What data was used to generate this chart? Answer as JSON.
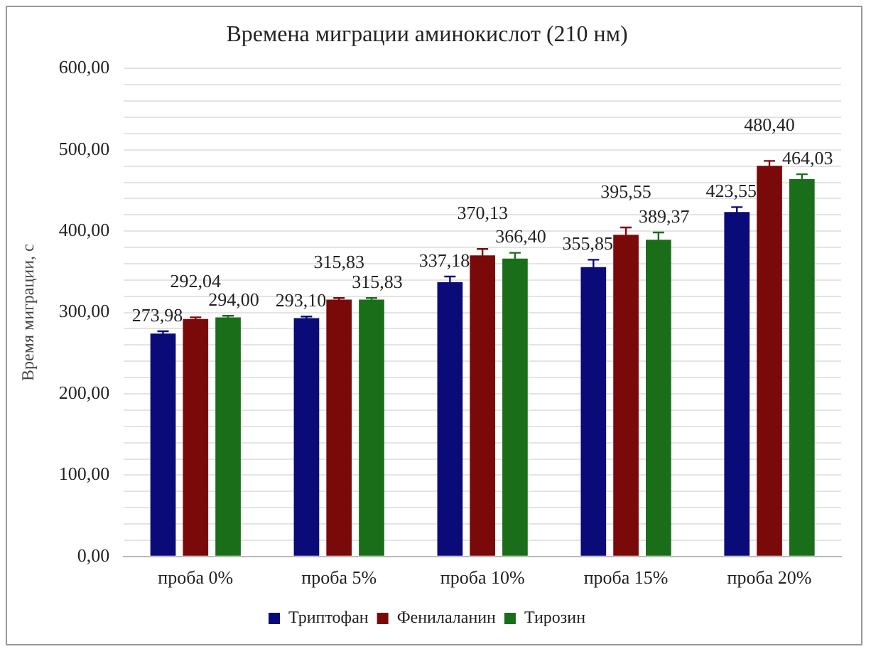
{
  "chart_data": {
    "type": "bar",
    "title": "Времена миграции аминокислот (210 нм)",
    "ylabel": "Время миграции, с",
    "categories": [
      "проба 0%",
      "проба 5%",
      "проба 10%",
      "проба 15%",
      "проба 20%"
    ],
    "series": [
      {
        "name": "Триптофан",
        "color": "#0a0a78",
        "values": [
          273.98,
          293.1,
          337.18,
          355.85,
          423.55
        ],
        "errors": [
          3,
          2,
          7,
          9,
          6
        ],
        "value_labels": [
          "273,98",
          "293,10",
          "337,18",
          "355,85",
          "423,55"
        ]
      },
      {
        "name": "Фенилаланин",
        "color": "#7a0a0a",
        "values": [
          292.04,
          315.83,
          370.13,
          395.55,
          480.4
        ],
        "errors": [
          2,
          2,
          8,
          9,
          6
        ],
        "value_labels": [
          "292,04",
          "315,83",
          "370,13",
          "395,55",
          "480,40"
        ]
      },
      {
        "name": "Тирозин",
        "color": "#1a6e1a",
        "values": [
          294.0,
          315.83,
          366.4,
          389.37,
          464.03
        ],
        "errors": [
          2,
          2,
          7,
          9,
          6
        ],
        "value_labels": [
          "294,00",
          "315,83",
          "366,40",
          "389,37",
          "464,03"
        ]
      }
    ],
    "ylim": [
      0,
      600
    ],
    "yticks": [
      {
        "value": 0,
        "label": "0,00"
      },
      {
        "value": 20,
        "label": null
      },
      {
        "value": 40,
        "label": null
      },
      {
        "value": 60,
        "label": null
      },
      {
        "value": 80,
        "label": null
      },
      {
        "value": 100,
        "label": "100,00"
      },
      {
        "value": 120,
        "label": null
      },
      {
        "value": 140,
        "label": null
      },
      {
        "value": 160,
        "label": null
      },
      {
        "value": 180,
        "label": null
      },
      {
        "value": 200,
        "label": "200,00"
      },
      {
        "value": 220,
        "label": null
      },
      {
        "value": 240,
        "label": null
      },
      {
        "value": 260,
        "label": null
      },
      {
        "value": 280,
        "label": null
      },
      {
        "value": 300,
        "label": "300,00"
      },
      {
        "value": 320,
        "label": null
      },
      {
        "value": 340,
        "label": null
      },
      {
        "value": 360,
        "label": null
      },
      {
        "value": 380,
        "label": null
      },
      {
        "value": 400,
        "label": "400,00"
      },
      {
        "value": 420,
        "label": null
      },
      {
        "value": 440,
        "label": null
      },
      {
        "value": 460,
        "label": null
      },
      {
        "value": 480,
        "label": null
      },
      {
        "value": 500,
        "label": "500,00"
      },
      {
        "value": 520,
        "label": null
      },
      {
        "value": 540,
        "label": null
      },
      {
        "value": 560,
        "label": null
      },
      {
        "value": 580,
        "label": null
      },
      {
        "value": 600,
        "label": "600,00"
      }
    ],
    "grid": "y",
    "legend": "bottom"
  }
}
